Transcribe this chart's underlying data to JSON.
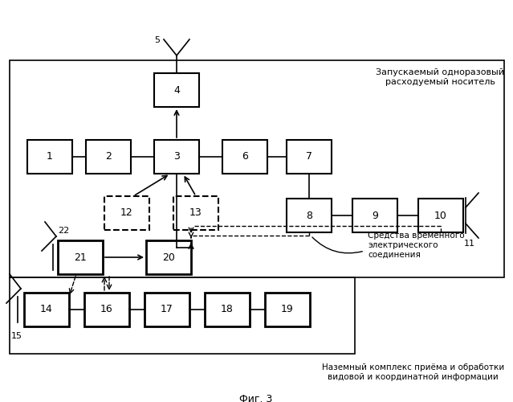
{
  "title_top": "Запускаемый одноразовый\nрасходуемый носитель",
  "title_bottom": "Наземный комплекс приёма и обработки\nвидовой и координатной информации",
  "subtitle": "Фиг. 3",
  "label_sredstva": "Средства временного\nэлектрического\nсоединения",
  "bg_color": "#ffffff",
  "fig_width": 6.39,
  "fig_height": 5.0
}
